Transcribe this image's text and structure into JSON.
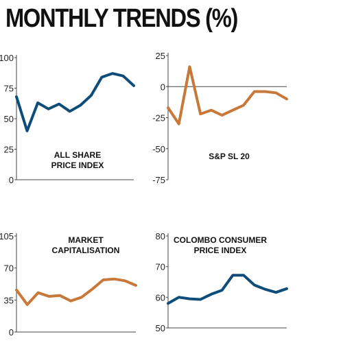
{
  "title": "MONTHLY TRENDS (%)",
  "colors": {
    "blue": "#0e4d7a",
    "orange": "#c8793a",
    "axis": "#444444"
  },
  "chart_data": [
    {
      "type": "line",
      "label_lines": [
        "ALL SHARE",
        "PRICE INDEX"
      ],
      "ylim": [
        0,
        100
      ],
      "yticks": [
        "0",
        "25",
        "50",
        "75",
        "100"
      ],
      "ytick_values": [
        0,
        25,
        50,
        75,
        100
      ],
      "color": "#0e4d7a",
      "values": [
        68,
        40,
        63,
        58,
        62,
        56,
        61,
        69,
        84,
        87,
        85,
        77
      ]
    },
    {
      "type": "line",
      "label_lines": [
        "S&P SL 20"
      ],
      "ylim": [
        -75,
        25
      ],
      "yticks": [
        "25",
        "0",
        "-25",
        "-50",
        "-75"
      ],
      "ytick_values": [
        25,
        0,
        -25,
        -50,
        -75
      ],
      "zero_line": true,
      "color": "#c8793a",
      "values": [
        -17,
        -30,
        16,
        -22,
        -19,
        -23,
        -19,
        -15,
        -4,
        -4,
        -5,
        -10
      ]
    },
    {
      "type": "line",
      "label_lines": [
        "MARKET",
        "CAPITALISATION"
      ],
      "ylim": [
        0,
        105
      ],
      "yticks": [
        "0",
        "35",
        "70",
        "105"
      ],
      "ytick_values": [
        0,
        35,
        70,
        105
      ],
      "color": "#c8793a",
      "values": [
        46,
        30,
        43,
        39,
        40,
        34,
        38,
        47,
        57,
        58,
        56,
        51
      ]
    },
    {
      "type": "line",
      "label_lines": [
        "COLOMBO CONSUMER",
        "PRICE INDEX"
      ],
      "ylim": [
        50,
        80
      ],
      "yticks": [
        "50",
        "60",
        "70",
        "80"
      ],
      "ytick_values": [
        50,
        60,
        70,
        80
      ],
      "color": "#0e4d7a",
      "values": [
        58,
        60,
        59.5,
        59.3,
        61,
        62.3,
        67.2,
        67.2,
        64,
        62.6,
        61.6,
        62.8
      ]
    }
  ]
}
